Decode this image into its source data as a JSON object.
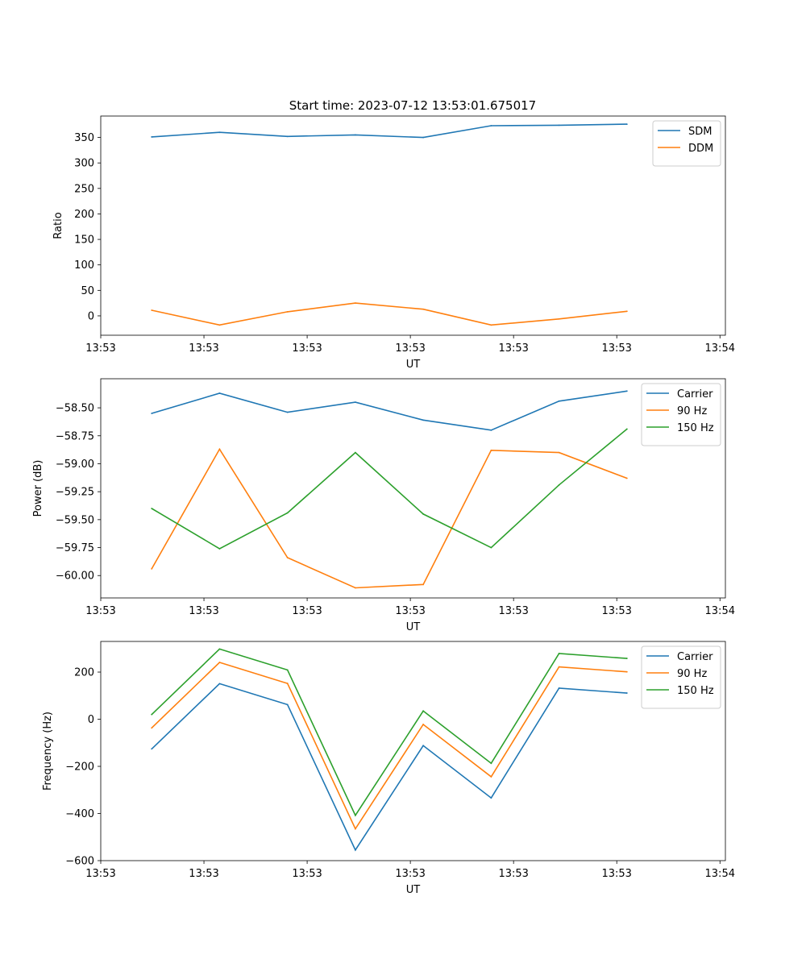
{
  "chart_data": [
    {
      "type": "line",
      "title": "Start time: 2023-07-12 13:53:01.675017",
      "xlabel": "UT",
      "ylabel": "Ratio",
      "x": [
        0,
        1,
        2,
        3,
        4,
        5,
        6,
        7
      ],
      "xlim": [
        -0.75,
        8.45
      ],
      "ylim": [
        -38,
        392
      ],
      "xticks": [
        {
          "value": -0.75,
          "label": "13:53"
        },
        {
          "value": 0.77,
          "label": "13:53"
        },
        {
          "value": 2.29,
          "label": "13:53"
        },
        {
          "value": 3.81,
          "label": "13:53"
        },
        {
          "value": 5.33,
          "label": "13:53"
        },
        {
          "value": 6.85,
          "label": "13:53"
        },
        {
          "value": 8.37,
          "label": "13:54"
        }
      ],
      "yticks": [
        {
          "value": 0,
          "label": "0"
        },
        {
          "value": 50,
          "label": "50"
        },
        {
          "value": 100,
          "label": "100"
        },
        {
          "value": 150,
          "label": "150"
        },
        {
          "value": 200,
          "label": "200"
        },
        {
          "value": 250,
          "label": "250"
        },
        {
          "value": 300,
          "label": "300"
        },
        {
          "value": 350,
          "label": "350"
        }
      ],
      "series": [
        {
          "name": "SDM",
          "color": "#1f77b4",
          "values": [
            351,
            360,
            352,
            355,
            350,
            373,
            374,
            376
          ]
        },
        {
          "name": "DDM",
          "color": "#ff7f0e",
          "values": [
            11,
            -18,
            8,
            25,
            13,
            -18,
            -6,
            9
          ]
        }
      ],
      "legend": "top-right"
    },
    {
      "type": "line",
      "title": "",
      "xlabel": "UT",
      "ylabel": "Power (dB)",
      "x": [
        0,
        1,
        2,
        3,
        4,
        5,
        6,
        7
      ],
      "xlim": [
        -0.75,
        8.45
      ],
      "ylim": [
        -60.2,
        -58.24
      ],
      "xticks": [
        {
          "value": -0.75,
          "label": "13:53"
        },
        {
          "value": 0.77,
          "label": "13:53"
        },
        {
          "value": 2.29,
          "label": "13:53"
        },
        {
          "value": 3.81,
          "label": "13:53"
        },
        {
          "value": 5.33,
          "label": "13:53"
        },
        {
          "value": 6.85,
          "label": "13:53"
        },
        {
          "value": 8.37,
          "label": "13:54"
        }
      ],
      "yticks": [
        {
          "value": -60.0,
          "label": "−60.00"
        },
        {
          "value": -59.75,
          "label": "−59.75"
        },
        {
          "value": -59.5,
          "label": "−59.50"
        },
        {
          "value": -59.25,
          "label": "−59.25"
        },
        {
          "value": -59.0,
          "label": "−59.00"
        },
        {
          "value": -58.75,
          "label": "−58.75"
        },
        {
          "value": -58.5,
          "label": "−58.50"
        }
      ],
      "series": [
        {
          "name": "Carrier",
          "color": "#1f77b4",
          "values": [
            -58.55,
            -58.37,
            -58.54,
            -58.45,
            -58.61,
            -58.7,
            -58.44,
            -58.35
          ]
        },
        {
          "name": "90 Hz",
          "color": "#ff7f0e",
          "values": [
            -59.94,
            -58.87,
            -59.84,
            -60.11,
            -60.08,
            -58.88,
            -58.9,
            -59.13
          ]
        },
        {
          "name": "150 Hz",
          "color": "#2ca02c",
          "values": [
            -59.4,
            -59.76,
            -59.44,
            -58.9,
            -59.45,
            -59.75,
            -59.19,
            -58.69
          ]
        }
      ],
      "legend": "top-right"
    },
    {
      "type": "line",
      "title": "",
      "xlabel": "UT",
      "ylabel": "Frequency (Hz)",
      "x": [
        0,
        1,
        2,
        3,
        4,
        5,
        6,
        7
      ],
      "xlim": [
        -0.75,
        8.45
      ],
      "ylim": [
        -600,
        330
      ],
      "xticks": [
        {
          "value": -0.75,
          "label": "13:53"
        },
        {
          "value": 0.77,
          "label": "13:53"
        },
        {
          "value": 2.29,
          "label": "13:53"
        },
        {
          "value": 3.81,
          "label": "13:53"
        },
        {
          "value": 5.33,
          "label": "13:53"
        },
        {
          "value": 6.85,
          "label": "13:53"
        },
        {
          "value": 8.37,
          "label": "13:54"
        }
      ],
      "yticks": [
        {
          "value": -600,
          "label": "−600"
        },
        {
          "value": -400,
          "label": "−400"
        },
        {
          "value": -200,
          "label": "−200"
        },
        {
          "value": 0,
          "label": "0"
        },
        {
          "value": 200,
          "label": "200"
        }
      ],
      "series": [
        {
          "name": "Carrier",
          "color": "#1f77b4",
          "values": [
            -126,
            151,
            62,
            -555,
            -112,
            -334,
            132,
            111
          ]
        },
        {
          "name": "90 Hz",
          "color": "#ff7f0e",
          "values": [
            -37,
            241,
            152,
            -465,
            -22,
            -244,
            222,
            201
          ]
        },
        {
          "name": "150 Hz",
          "color": "#2ca02c",
          "values": [
            20,
            298,
            209,
            -408,
            35,
            -187,
            279,
            258
          ]
        }
      ],
      "legend": "top-right"
    }
  ]
}
